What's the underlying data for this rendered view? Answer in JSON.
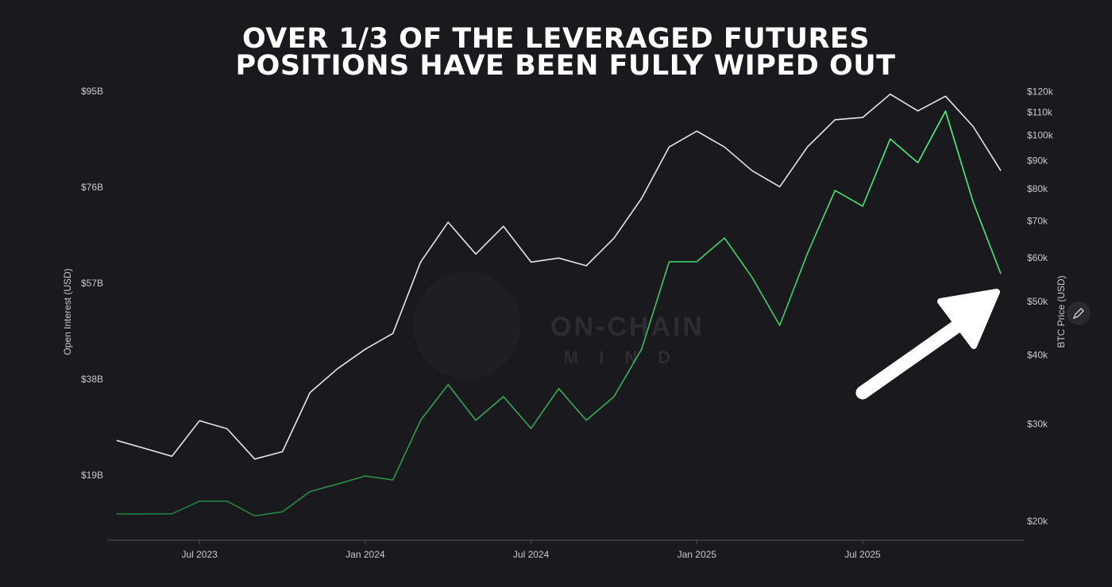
{
  "chart_data": {
    "type": "line",
    "title": [
      "OVER 1/3 OF THE LEVERAGED FUTURES",
      "POSITIONS HAVE BEEN FULLY WIPED OUT"
    ],
    "y_label": "Open Interest (USD)",
    "y2_label": "BTC Price (USD)",
    "watermark": [
      "ON-CHAIN",
      "MIND"
    ],
    "x": [
      "2023-04",
      "2023-05",
      "2023-06",
      "2023-07",
      "2023-08",
      "2023-09",
      "2023-10",
      "2023-11",
      "2023-12",
      "2024-01",
      "2024-02",
      "2024-03",
      "2024-04",
      "2024-05",
      "2024-06",
      "2024-07",
      "2024-08",
      "2024-09",
      "2024-10",
      "2024-11",
      "2024-12",
      "2025-01",
      "2025-02",
      "2025-03",
      "2025-04",
      "2025-05",
      "2025-06",
      "2025-07",
      "2025-08",
      "2025-09",
      "2025-10",
      "2025-11",
      "2025-12"
    ],
    "series": [
      {
        "name": "Open Interest",
        "color": "#3ee06f",
        "axis": "y",
        "values": [
          11.5,
          11.5,
          11.5,
          14.0,
          14.0,
          11.1,
          11.9,
          15.9,
          17.4,
          19.0,
          18.2,
          30.0,
          37.1,
          30.0,
          34.7,
          28.4,
          36.3,
          30.0,
          34.7,
          44.1,
          61.4,
          61.4,
          66.1,
          58.3,
          48.8,
          63.0,
          75.5,
          72.4,
          85.7,
          81.0,
          91.2,
          73.2,
          59.0
        ]
      },
      {
        "name": "BTC Price",
        "color": "#e6e6e6",
        "axis": "y2",
        "values": [
          28.1,
          27.2,
          26.3,
          30.5,
          29.5,
          26.0,
          26.8,
          34.3,
          37.9,
          41.1,
          43.9,
          59.1,
          69.8,
          61.1,
          68.6,
          59.1,
          60.1,
          58.2,
          65.3,
          77.1,
          95.5,
          102,
          95.5,
          86.5,
          80.9,
          95.5,
          107,
          108,
          119,
          111,
          118,
          104,
          86.5
        ]
      }
    ],
    "xlim": [
      "2023-03",
      "2025-12"
    ],
    "xticks": [
      {
        "value": "2023-07",
        "label": "Jul 2023"
      },
      {
        "value": "2024-01",
        "label": "Jan 2024"
      },
      {
        "value": "2024-07",
        "label": "Jul 2024"
      },
      {
        "value": "2025-01",
        "label": "Jan 2025"
      },
      {
        "value": "2025-07",
        "label": "Jul 2025"
      }
    ],
    "ylim": [
      6.44,
      97.5
    ],
    "yticks": [
      {
        "value": 19,
        "label": "$19B"
      },
      {
        "value": 38,
        "label": "$38B"
      },
      {
        "value": 57,
        "label": "$57B"
      },
      {
        "value": 76,
        "label": "$76B"
      },
      {
        "value": 95,
        "label": "$95B"
      }
    ],
    "y2lim": [
      18.6,
      126.6
    ],
    "y2_log": true,
    "y2ticks": [
      {
        "value": 20,
        "label": "$20k"
      },
      {
        "value": 30,
        "label": "$30k"
      },
      {
        "value": 40,
        "label": "$40k"
      },
      {
        "value": 50,
        "label": "$50k"
      },
      {
        "value": 60,
        "label": "$60k"
      },
      {
        "value": 70,
        "label": "$70k"
      },
      {
        "value": 80,
        "label": "$80k"
      },
      {
        "value": 90,
        "label": "$90k"
      },
      {
        "value": 100,
        "label": "$100k"
      },
      {
        "value": 110,
        "label": "$110k"
      },
      {
        "value": 120,
        "label": "$120k"
      }
    ],
    "grid": false
  }
}
